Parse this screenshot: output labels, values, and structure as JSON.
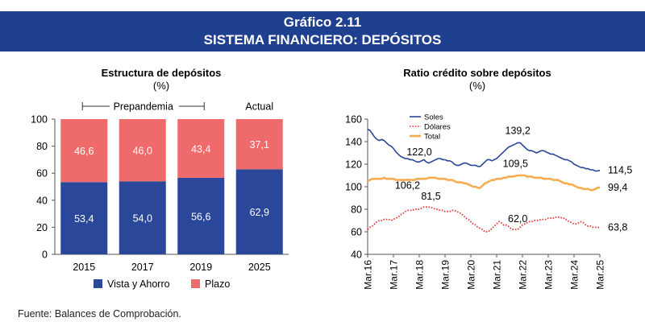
{
  "header": {
    "title": "Gráfico 2.11",
    "subtitle": "SISTEMA FINANCIERO: DEPÓSITOS"
  },
  "source": "Fuente: Balances de Comprobación.",
  "colors": {
    "banner": "#1f3f8f",
    "vista": "#2a479a",
    "plazo": "#ef6b6b",
    "soles": "#2a479a",
    "dolares": "#e5383b",
    "total": "#f6ad52"
  },
  "chart_data": [
    {
      "type": "bar",
      "stacked": true,
      "title": "Estructura de depósitos",
      "subtitle": "(%)",
      "categories": [
        "2015",
        "2017",
        "2019",
        "2025"
      ],
      "series": [
        {
          "name": "Vista y Ahorro",
          "values": [
            53.4,
            54.0,
            56.6,
            62.9
          ],
          "labels": [
            "53,4",
            "54,0",
            "56,6",
            "62,9"
          ]
        },
        {
          "name": "Plazo",
          "values": [
            46.6,
            46.0,
            43.4,
            37.1
          ],
          "labels": [
            "46,6",
            "46,0",
            "43,4",
            "37,1"
          ]
        }
      ],
      "ylim": [
        0,
        100
      ],
      "yticks": [
        "0",
        "20",
        "40",
        "60",
        "80",
        "100"
      ],
      "annotations": [
        "Prepandemia",
        "Actual"
      ],
      "legend": "bottom"
    },
    {
      "type": "line",
      "title": "Ratio crédito sobre depósitos",
      "subtitle": "(%)",
      "ylim": [
        40,
        160
      ],
      "yticks": [
        "40",
        "60",
        "80",
        "100",
        "120",
        "140",
        "160"
      ],
      "xticks": [
        "Mar.16",
        "Mar.17",
        "Mar.18",
        "Mar.19",
        "Mar.20",
        "Mar.21",
        "Mar.22",
        "Mar.23",
        "Mar.24",
        "Mar.25"
      ],
      "legend": "top-left",
      "series": [
        {
          "name": "Soles",
          "style": "solid",
          "values": [
            151,
            150,
            147,
            144,
            142,
            141,
            142,
            141,
            139,
            137,
            136,
            134,
            131,
            129,
            127,
            126,
            125,
            125,
            124,
            124,
            123,
            122,
            122,
            123,
            124,
            122,
            121,
            122,
            123,
            124,
            125,
            125,
            124,
            124,
            123,
            123,
            122,
            120,
            119,
            119,
            120,
            121,
            121,
            120,
            119,
            119,
            119,
            118,
            118,
            120,
            122,
            124,
            124,
            123,
            124,
            125,
            127,
            129,
            131,
            133,
            135,
            136,
            137,
            138,
            139,
            139,
            137,
            135,
            133,
            132,
            132,
            131,
            130,
            131,
            132,
            132,
            131,
            130,
            129,
            129,
            128,
            127,
            126,
            125,
            124,
            124,
            123,
            122,
            120,
            119,
            118,
            117,
            117,
            116,
            116,
            115,
            115,
            114,
            114,
            114.5
          ]
        },
        {
          "name": "Dólares",
          "style": "dotted",
          "values": [
            62,
            64,
            65,
            67,
            69,
            70,
            70,
            71,
            71,
            71,
            70,
            71,
            72,
            73,
            75,
            76,
            78,
            79,
            79,
            79,
            80,
            80,
            80,
            81,
            82,
            82,
            82,
            81.5,
            81,
            80,
            80,
            79,
            79,
            78,
            78,
            78,
            79,
            79,
            78,
            77,
            76,
            74,
            72,
            71,
            69,
            67,
            66,
            64,
            63,
            62,
            60,
            60,
            61,
            63,
            65,
            67,
            69,
            68,
            66,
            66,
            65,
            63,
            62,
            62,
            62,
            64,
            66,
            67,
            68,
            69,
            69,
            70,
            70,
            70,
            71,
            71,
            71,
            72,
            72,
            72,
            73,
            73,
            73,
            72,
            72,
            70,
            69,
            68,
            67,
            67,
            68,
            69,
            68,
            66,
            65,
            65,
            64,
            64,
            64,
            63.8
          ]
        },
        {
          "name": "Total",
          "style": "solid",
          "values": [
            105,
            106,
            107,
            107,
            107,
            107,
            107,
            108,
            107,
            107,
            107,
            107,
            106,
            106,
            106,
            106,
            106,
            106.2,
            106,
            106,
            106,
            107,
            107,
            107,
            107,
            107,
            108,
            108,
            108,
            108,
            107,
            107,
            107,
            107,
            106,
            106,
            106,
            105,
            104,
            104,
            104,
            103,
            103,
            102,
            101,
            100,
            100,
            99,
            99,
            101,
            103,
            104,
            105,
            106,
            106,
            107,
            107,
            107,
            108,
            108,
            109,
            109,
            109,
            109.5,
            110,
            110,
            110,
            110,
            109,
            109,
            109,
            108,
            108,
            108,
            108,
            107,
            107,
            107,
            107,
            106,
            106,
            106,
            105,
            104,
            103,
            103,
            102,
            102,
            101,
            100,
            99,
            99,
            98,
            98,
            98,
            97,
            97,
            98,
            99,
            99.4
          ]
        }
      ],
      "annotations": [
        {
          "text": "122,0",
          "series": 0,
          "index": 22
        },
        {
          "text": "106,2",
          "series": 2,
          "index": 17
        },
        {
          "text": "139,2",
          "series": 0,
          "index": 64
        },
        {
          "text": "109,5",
          "series": 2,
          "index": 63
        },
        {
          "text": "81,5",
          "series": 1,
          "index": 27
        },
        {
          "text": "62,0",
          "series": 1,
          "index": 64
        },
        {
          "text": "114,5",
          "series": 0,
          "index": 99
        },
        {
          "text": "99,4",
          "series": 2,
          "index": 99
        },
        {
          "text": "63,8",
          "series": 1,
          "index": 99
        }
      ]
    }
  ]
}
